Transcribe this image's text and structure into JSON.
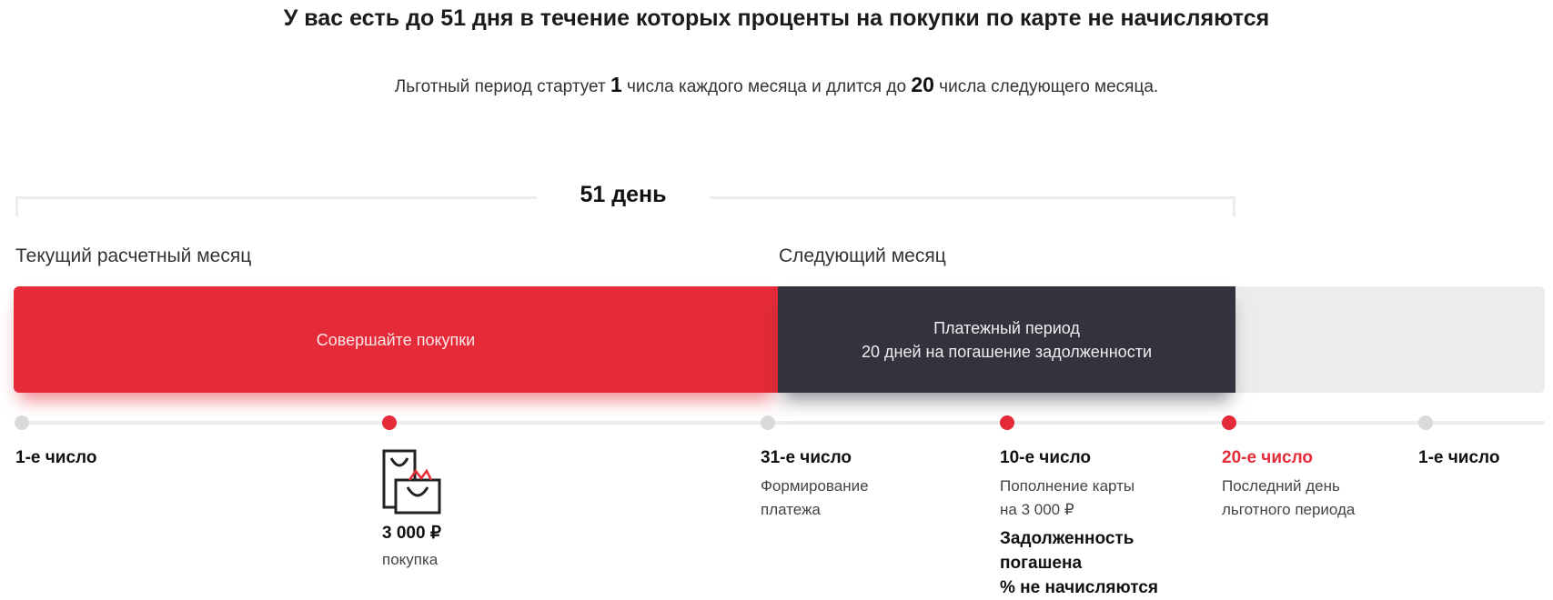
{
  "title": "У вас есть до 51 дня в течение которых проценты на покупки по карте не начисляются",
  "subtitle": {
    "part1": "Льготный период стартует ",
    "start_day": "1",
    "part2": " числа каждого месяца и длится до ",
    "end_day": "20",
    "part3": " числа следующего месяца."
  },
  "days_label": "51 день",
  "months": {
    "current": "Текущий расчетный месяц",
    "next": "Следующий месяц"
  },
  "bars": {
    "purchase": "Совершайте покупки",
    "payment_line1": "Платежный период",
    "payment_line2": "20 дней на погашение задолженности"
  },
  "points": [
    {
      "label": "1-е число"
    },
    {
      "amount": "3 000 ₽",
      "desc": "покупка"
    },
    {
      "label": "31-е число",
      "desc1": "Формирование",
      "desc2": "платежа"
    },
    {
      "label": "10-е число",
      "desc1": "Пополнение карты",
      "desc2": "на 3 000 ₽",
      "note1": "Задолженность",
      "note2": "погашена",
      "note3": "% не начисляются"
    },
    {
      "label": "20-е число",
      "desc1": "Последний день",
      "desc2": "льготного периода"
    },
    {
      "label": "1-е число"
    }
  ],
  "colors": {
    "accent": "#e52b38",
    "dark": "#34323d",
    "muted": "#ececec"
  }
}
